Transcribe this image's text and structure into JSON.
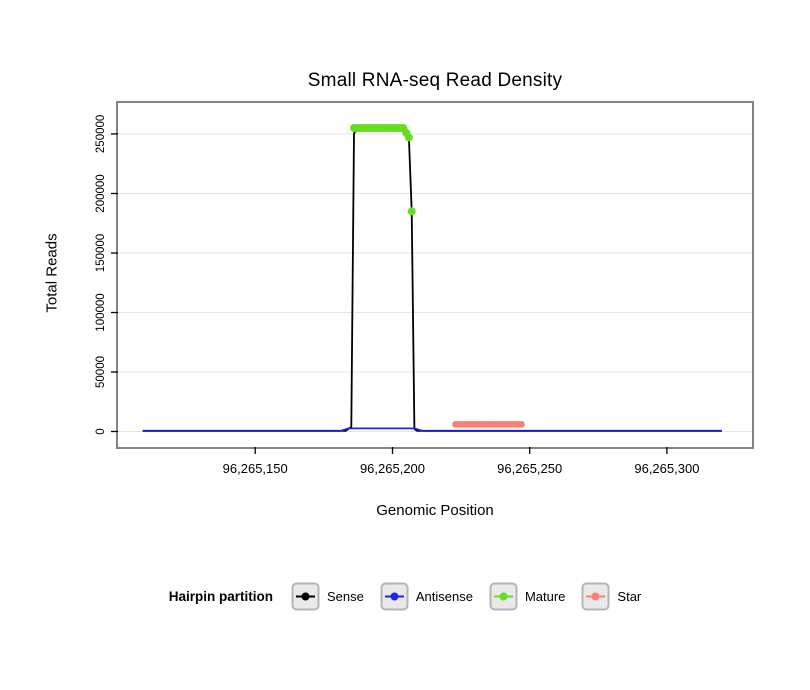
{
  "chart_data": {
    "type": "line",
    "title": "Small RNA-seq Read Density",
    "xlabel": "Genomic Position",
    "ylabel": "Total Reads",
    "legend_title": "Hairpin partition",
    "legend_position": "bottom",
    "grid": "horizontal",
    "xlim": [
      96265100,
      96265331
    ],
    "ylim": [
      -13000,
      276000
    ],
    "x_ticks": [
      96265150,
      96265200,
      96265250,
      96265300
    ],
    "x_tick_labels": [
      "96,265,150",
      "96,265,200",
      "96,265,250",
      "96,265,300"
    ],
    "y_ticks": [
      0,
      50000,
      100000,
      150000,
      200000,
      250000
    ],
    "y_tick_labels": [
      "0",
      "50000",
      "100000",
      "150000",
      "200000",
      "250000"
    ],
    "style": {
      "panel_border_color": "#848484",
      "grid_color": "#e4e4e4",
      "legend_key_fill": "#e9e9e9",
      "legend_key_border": "#b5b5b5"
    },
    "series": [
      {
        "name": "Sense",
        "color": "#000000",
        "kind": "line",
        "stroke_width": 1.8,
        "points": [
          [
            96265109,
            600
          ],
          [
            96265183,
            600
          ],
          [
            96265185,
            4000
          ],
          [
            96265186,
            250000
          ],
          [
            96265187,
            255000
          ],
          [
            96265204,
            255000
          ],
          [
            96265205,
            251000
          ],
          [
            96265206,
            247000
          ],
          [
            96265207,
            185000
          ],
          [
            96265208,
            2000
          ],
          [
            96265209,
            600
          ],
          [
            96265320,
            600
          ]
        ]
      },
      {
        "name": "Antisense",
        "color": "#2222ee",
        "kind": "line",
        "stroke_width": 1.8,
        "points": [
          [
            96265109,
            400
          ],
          [
            96265181,
            400
          ],
          [
            96265184,
            2600
          ],
          [
            96265208,
            2600
          ],
          [
            96265211,
            400
          ],
          [
            96265320,
            400
          ]
        ]
      },
      {
        "name": "Mature",
        "color": "#66dd22",
        "kind": "points",
        "point_radius": 4,
        "points": [
          [
            96265186,
            255000
          ],
          [
            96265187,
            255000
          ],
          [
            96265188,
            255000
          ],
          [
            96265189,
            255000
          ],
          [
            96265190,
            255000
          ],
          [
            96265191,
            255000
          ],
          [
            96265192,
            255000
          ],
          [
            96265193,
            255000
          ],
          [
            96265194,
            255000
          ],
          [
            96265195,
            255000
          ],
          [
            96265196,
            255000
          ],
          [
            96265197,
            255000
          ],
          [
            96265198,
            255000
          ],
          [
            96265199,
            255000
          ],
          [
            96265200,
            255000
          ],
          [
            96265201,
            255000
          ],
          [
            96265202,
            255000
          ],
          [
            96265203,
            255000
          ],
          [
            96265204,
            255000
          ],
          [
            96265205,
            251000
          ],
          [
            96265206,
            247000
          ],
          [
            96265207,
            185000
          ]
        ]
      },
      {
        "name": "Star",
        "color": "#fa8072",
        "kind": "points",
        "point_radius": 3.4,
        "points": [
          [
            96265223,
            6000
          ],
          [
            96265224,
            6000
          ],
          [
            96265225,
            6000
          ],
          [
            96265226,
            6000
          ],
          [
            96265227,
            6000
          ],
          [
            96265228,
            6000
          ],
          [
            96265229,
            6000
          ],
          [
            96265230,
            6000
          ],
          [
            96265231,
            6000
          ],
          [
            96265232,
            6000
          ],
          [
            96265233,
            6000
          ],
          [
            96265234,
            6000
          ],
          [
            96265235,
            6000
          ],
          [
            96265236,
            6000
          ],
          [
            96265237,
            6000
          ],
          [
            96265238,
            6000
          ],
          [
            96265239,
            6000
          ],
          [
            96265240,
            6000
          ],
          [
            96265241,
            6000
          ],
          [
            96265242,
            6000
          ],
          [
            96265243,
            6000
          ],
          [
            96265244,
            6000
          ],
          [
            96265245,
            6000
          ],
          [
            96265246,
            6000
          ],
          [
            96265247,
            6000
          ]
        ]
      }
    ]
  }
}
